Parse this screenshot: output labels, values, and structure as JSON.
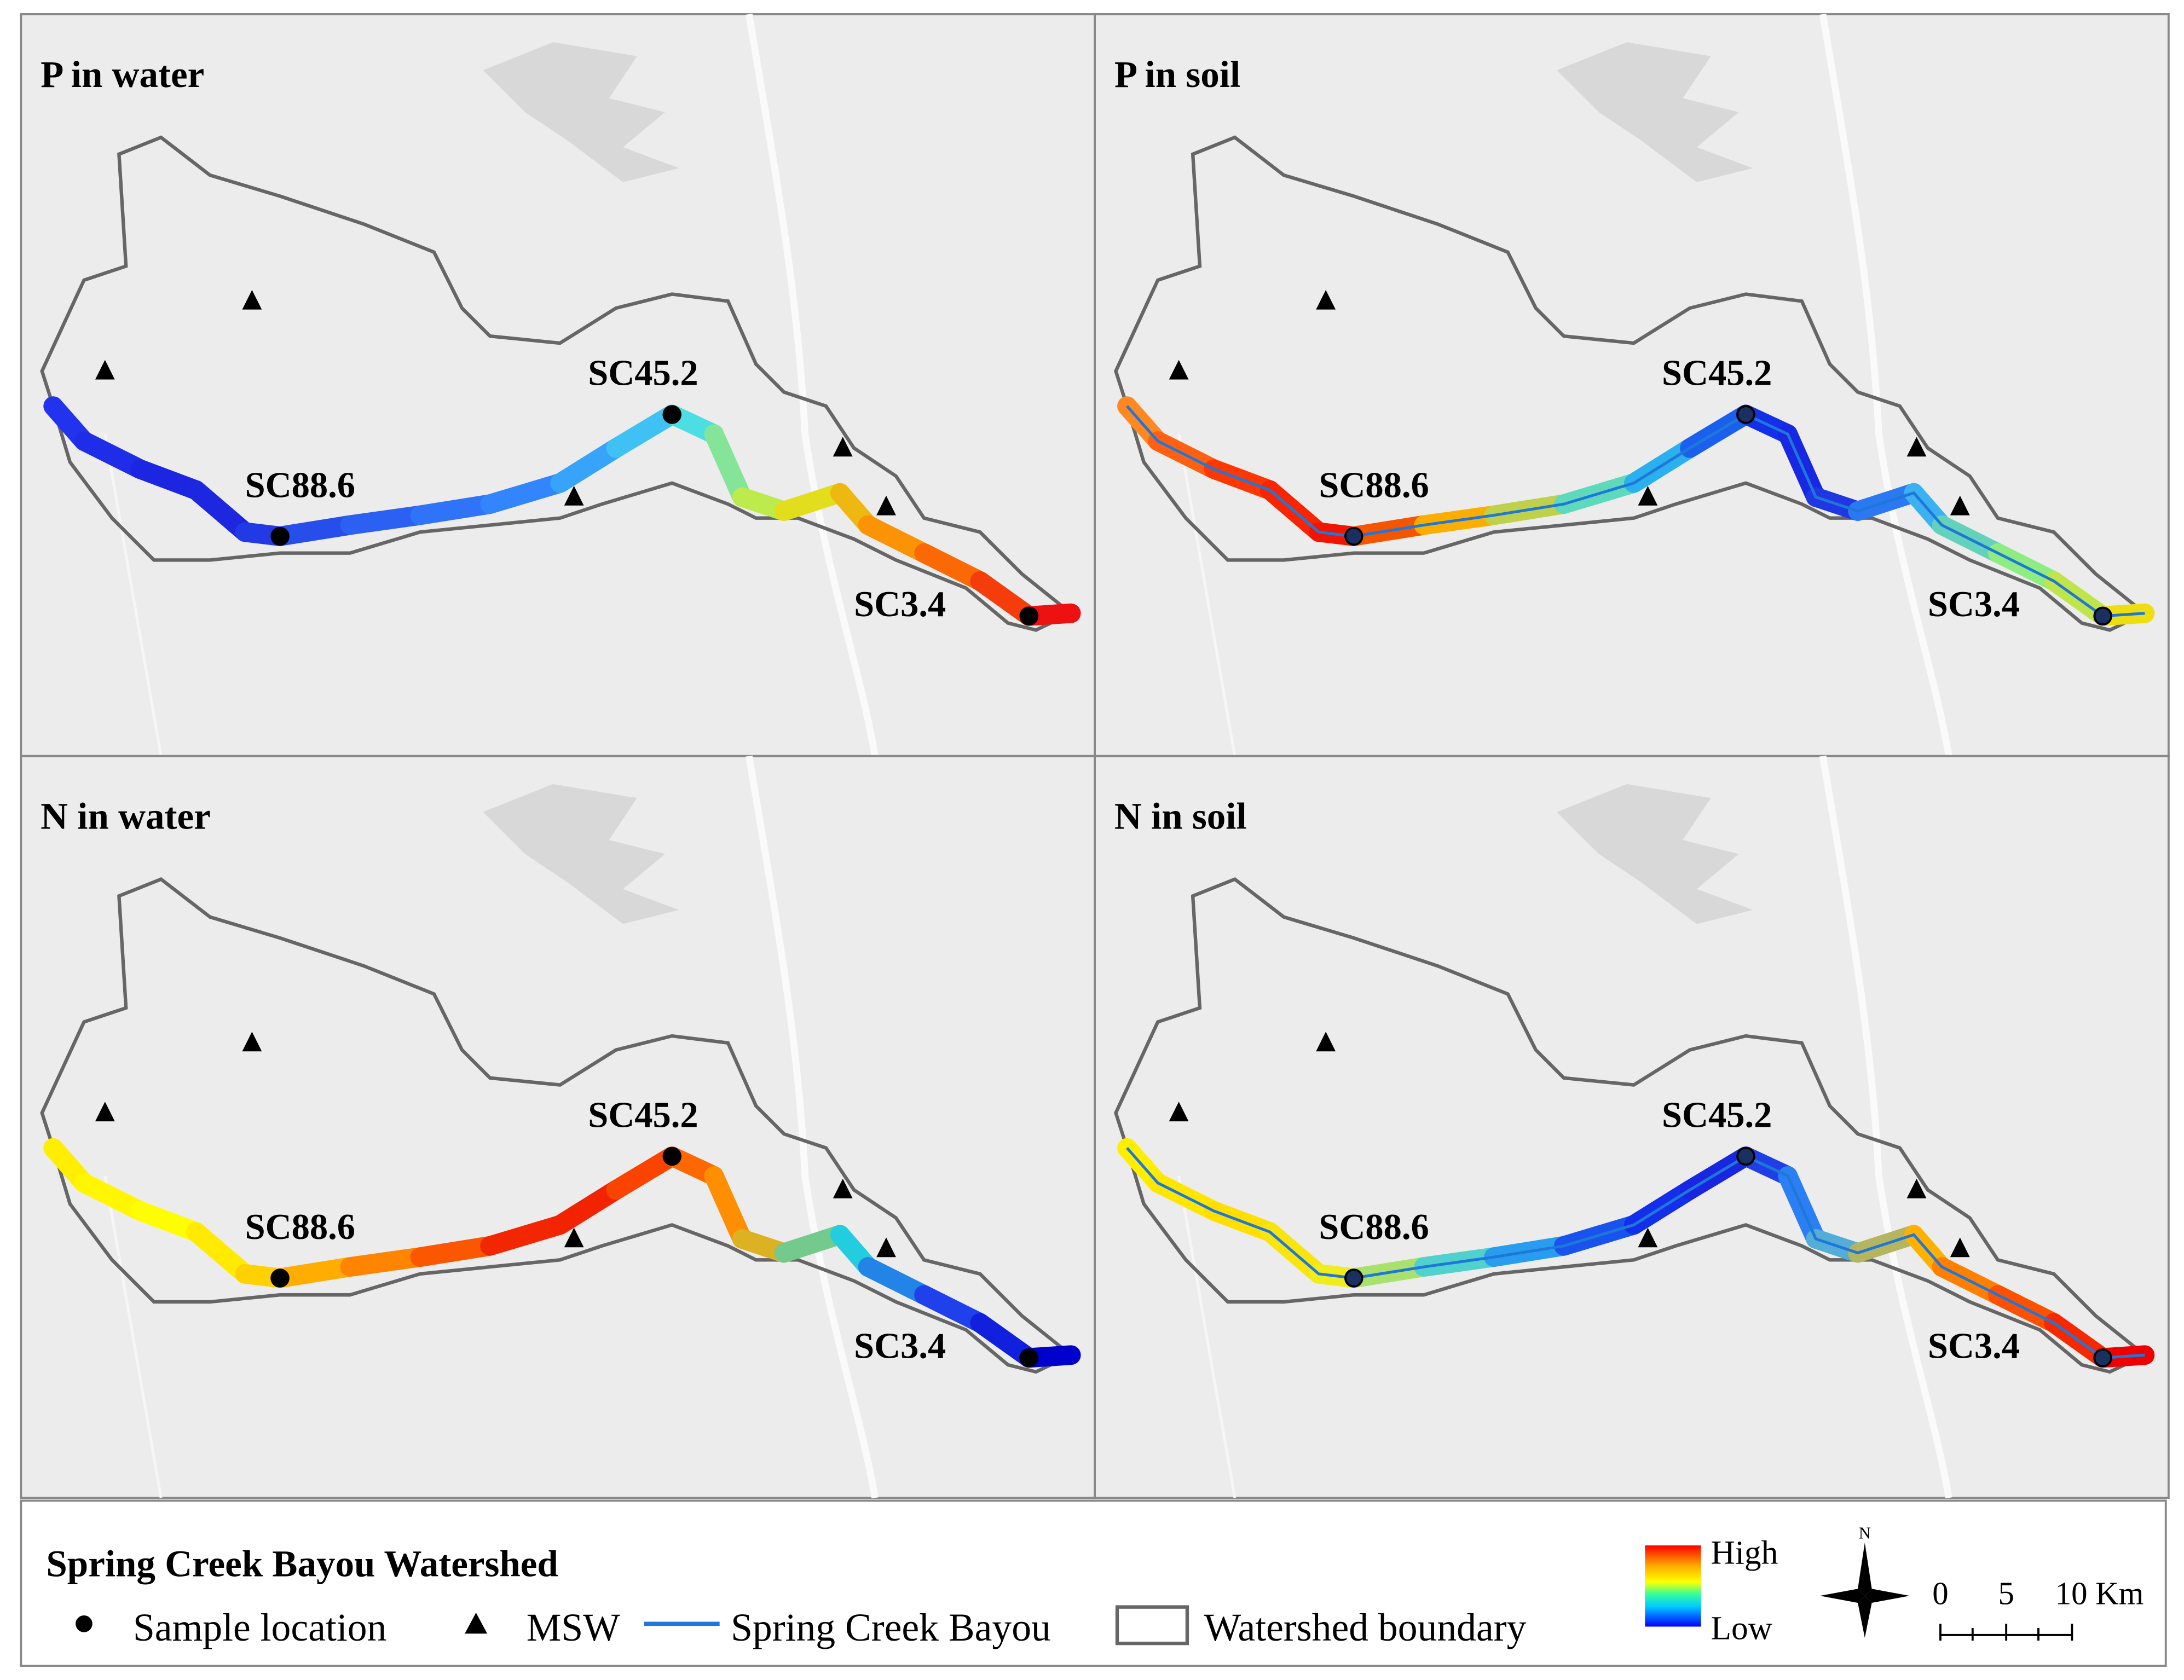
{
  "panels": [
    {
      "title": "P in water",
      "sample_labels": [
        "SC88.6",
        "SC45.2",
        "SC3.4"
      ],
      "center_line": false,
      "river_colors": [
        "#2233ee",
        "#1a22dd",
        "#2a55ee",
        "#3388ff",
        "#44ddee",
        "#ddee22",
        "#ff8800",
        "#ee1111"
      ]
    },
    {
      "title": "P in soil",
      "sample_labels": [
        "SC88.6",
        "SC45.2",
        "SC3.4"
      ],
      "center_line": true,
      "river_colors": [
        "#ff8822",
        "#ff3300",
        "#ee1100",
        "#ffcc00",
        "#33ddee",
        "#1133ee",
        "#1a22dd",
        "#33aaff",
        "#88ee88",
        "#eedd11"
      ]
    },
    {
      "title": "N in water",
      "sample_labels": [
        "SC88.6",
        "SC45.2",
        "SC3.4"
      ],
      "center_line": false,
      "river_colors": [
        "#ffee00",
        "#ffff00",
        "#ffcc00",
        "#ff7700",
        "#ee1100",
        "#ff5500",
        "#ffaa00",
        "#22dddd",
        "#2244ee",
        "#0000cc"
      ]
    },
    {
      "title": "N in soil",
      "sample_labels": [
        "SC88.6",
        "SC45.2",
        "SC3.4"
      ],
      "center_line": true,
      "river_colors": [
        "#ffee00",
        "#ffdd00",
        "#eeee22",
        "#33ccee",
        "#1133ee",
        "#1a22dd",
        "#33aaff",
        "#ffbb00",
        "#ff5500",
        "#ee0000"
      ]
    }
  ],
  "legend": {
    "title": "Spring Creek Bayou Watershed",
    "items": [
      "Sample location",
      "MSW",
      "Spring Creek Bayou",
      "Watershed boundary"
    ]
  },
  "colorbar": {
    "high": "High",
    "low": "Low"
  },
  "north": "N",
  "scale_labels": [
    "0",
    "5",
    "10 Km"
  ]
}
